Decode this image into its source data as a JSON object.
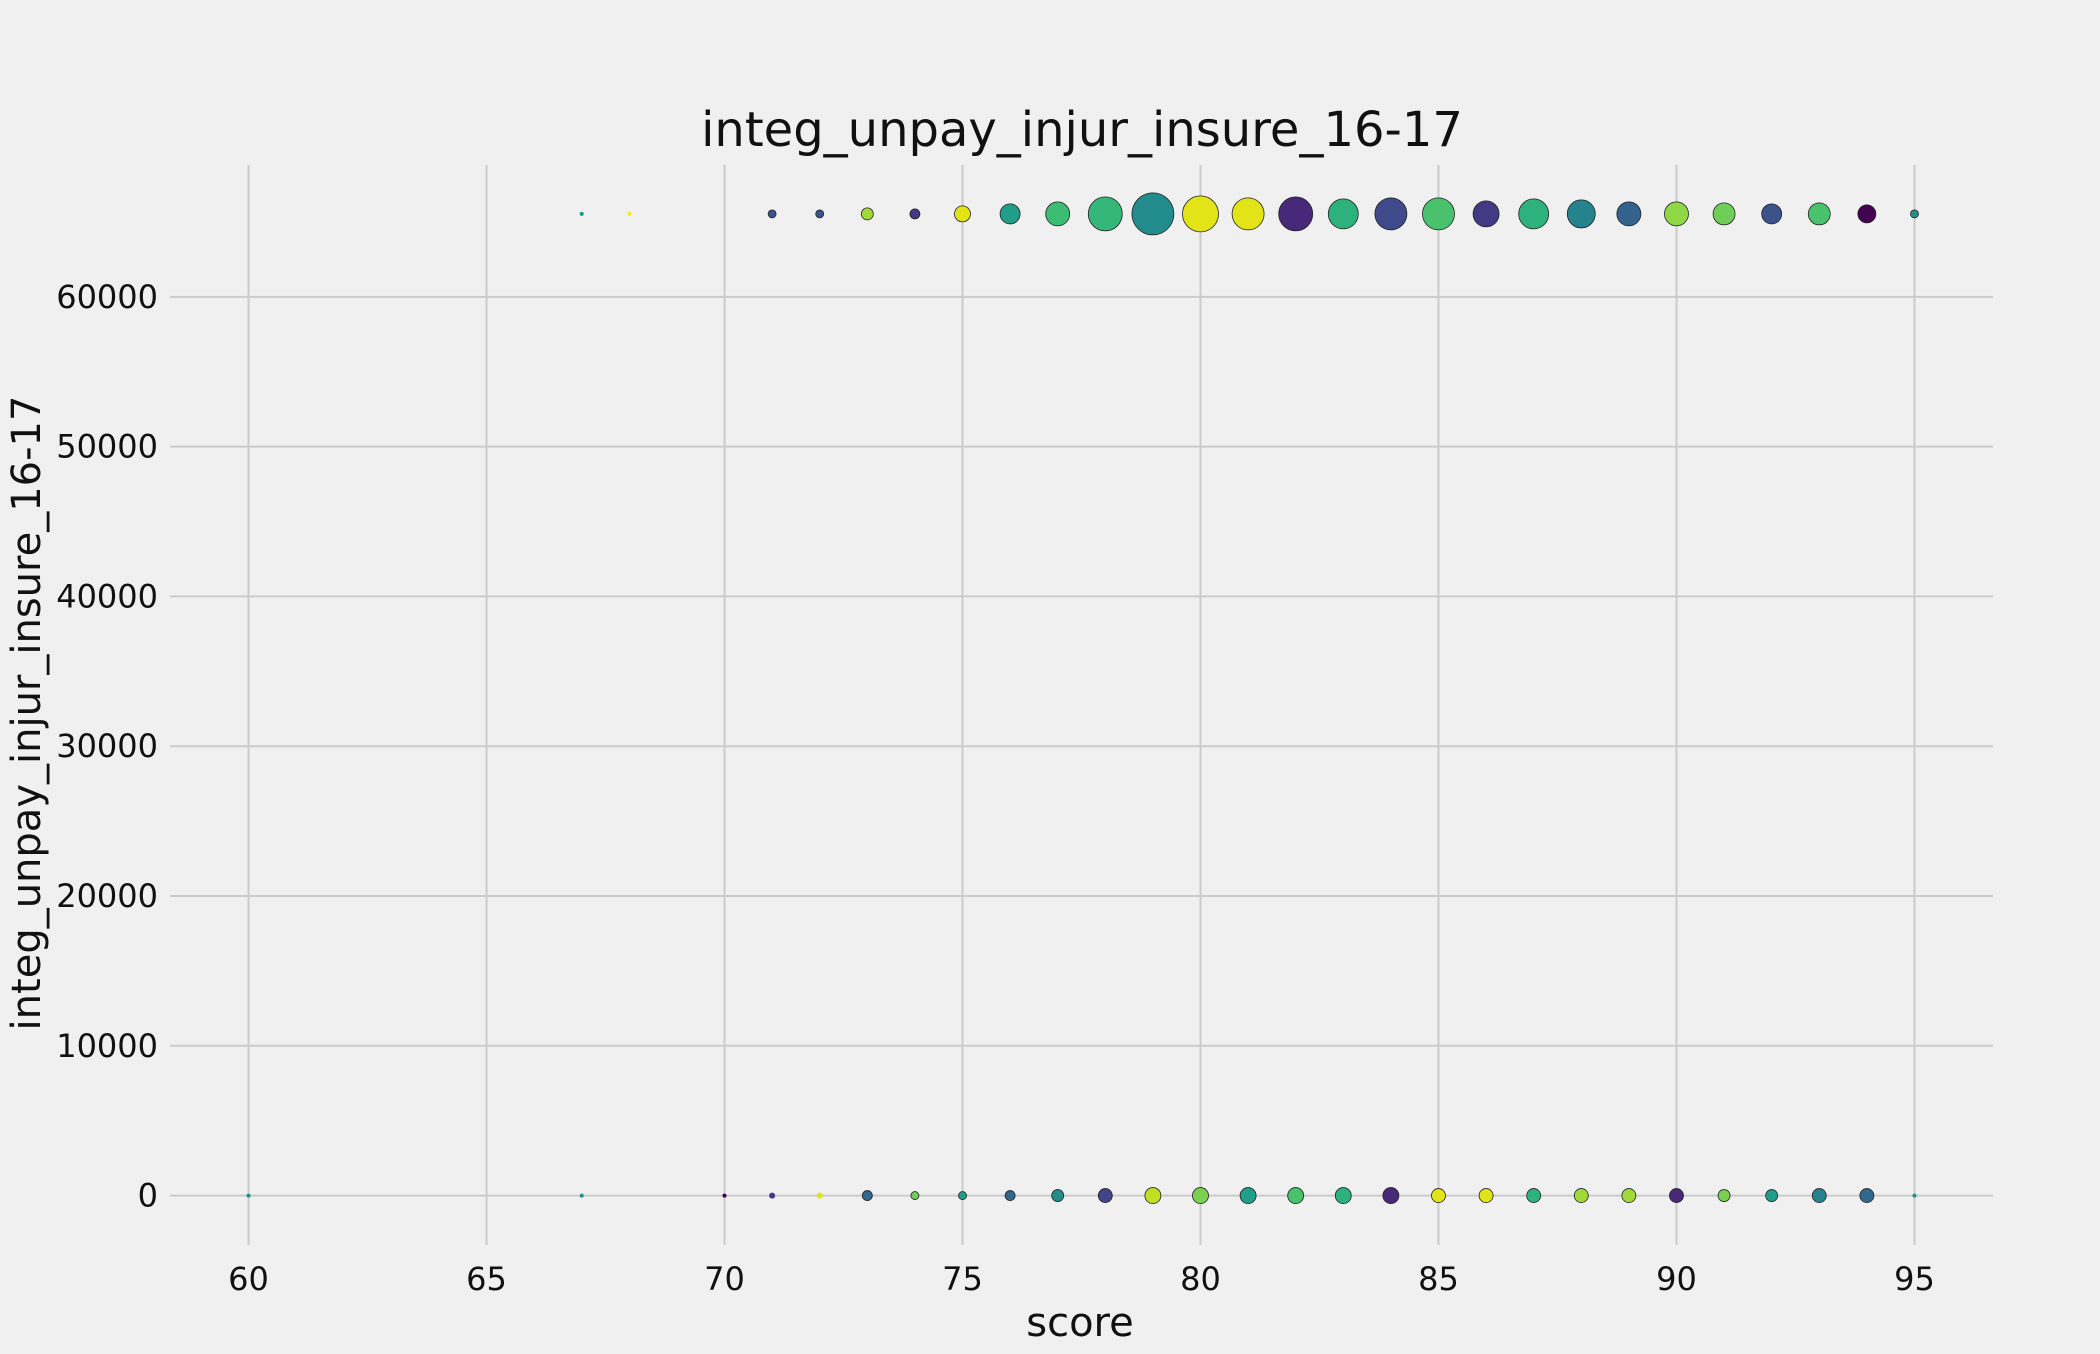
{
  "chart_data": {
    "type": "scatter",
    "title": "integ_unpay_injur_insure_16-17",
    "xlabel": "score",
    "ylabel": "integ_unpay_injur_insure_16-17",
    "xlim": [
      58.35,
      96.65
    ],
    "ylim": [
      -3300,
      68800
    ],
    "xticks": [
      60,
      65,
      70,
      75,
      80,
      85,
      90,
      95
    ],
    "yticks": [
      0,
      10000,
      20000,
      30000,
      40000,
      50000,
      60000
    ],
    "grid": true,
    "background": "#f0f0f0",
    "gridColor": "#cbcbcb",
    "series": [
      {
        "points": [
          {
            "x": 67,
            "y": 65535,
            "size": 2,
            "color": "#21918c"
          },
          {
            "x": 68,
            "y": 65535,
            "size": 2,
            "color": "#fde725"
          },
          {
            "x": 71,
            "y": 65535,
            "size": 4,
            "color": "#3b528b"
          },
          {
            "x": 72,
            "y": 65535,
            "size": 4,
            "color": "#3b528b"
          },
          {
            "x": 73,
            "y": 65535,
            "size": 6,
            "color": "#a0da39"
          },
          {
            "x": 74,
            "y": 65535,
            "size": 5,
            "color": "#443983"
          },
          {
            "x": 75,
            "y": 65535,
            "size": 8,
            "color": "#e2e418"
          },
          {
            "x": 76,
            "y": 65535,
            "size": 10,
            "color": "#1f9e89"
          },
          {
            "x": 77,
            "y": 65535,
            "size": 12,
            "color": "#3dbc74"
          },
          {
            "x": 78,
            "y": 65535,
            "size": 17,
            "color": "#35b779"
          },
          {
            "x": 79,
            "y": 65535,
            "size": 21,
            "color": "#228c8d"
          },
          {
            "x": 80,
            "y": 65535,
            "size": 18,
            "color": "#e2e418"
          },
          {
            "x": 81,
            "y": 65535,
            "size": 16,
            "color": "#e2e418"
          },
          {
            "x": 82,
            "y": 65535,
            "size": 17,
            "color": "#482878"
          },
          {
            "x": 83,
            "y": 65535,
            "size": 15,
            "color": "#2db27d"
          },
          {
            "x": 84,
            "y": 65535,
            "size": 16,
            "color": "#3e4a89"
          },
          {
            "x": 85,
            "y": 65535,
            "size": 16,
            "color": "#4ac16d"
          },
          {
            "x": 86,
            "y": 65535,
            "size": 13,
            "color": "#443983"
          },
          {
            "x": 87,
            "y": 65535,
            "size": 15,
            "color": "#2db27d"
          },
          {
            "x": 88,
            "y": 65535,
            "size": 14,
            "color": "#25838e"
          },
          {
            "x": 89,
            "y": 65535,
            "size": 12,
            "color": "#33638d"
          },
          {
            "x": 90,
            "y": 65535,
            "size": 12,
            "color": "#8fd744"
          },
          {
            "x": 91,
            "y": 65535,
            "size": 11,
            "color": "#6ece58"
          },
          {
            "x": 92,
            "y": 65535,
            "size": 10,
            "color": "#3b528b"
          },
          {
            "x": 93,
            "y": 65535,
            "size": 11,
            "color": "#4ac16d"
          },
          {
            "x": 94,
            "y": 65535,
            "size": 9,
            "color": "#440154"
          },
          {
            "x": 95,
            "y": 65535,
            "size": 4,
            "color": "#21918c"
          },
          {
            "x": 60,
            "y": 0,
            "size": 2,
            "color": "#21918c"
          },
          {
            "x": 67,
            "y": 0,
            "size": 2,
            "color": "#21918c"
          },
          {
            "x": 70,
            "y": 0,
            "size": 2,
            "color": "#440154"
          },
          {
            "x": 71,
            "y": 0,
            "size": 3,
            "color": "#443983"
          },
          {
            "x": 72,
            "y": 0,
            "size": 3,
            "color": "#e2e418"
          },
          {
            "x": 73,
            "y": 0,
            "size": 5,
            "color": "#31688e"
          },
          {
            "x": 74,
            "y": 0,
            "size": 4,
            "color": "#6ece58"
          },
          {
            "x": 75,
            "y": 0,
            "size": 4,
            "color": "#1f9e89"
          },
          {
            "x": 76,
            "y": 0,
            "size": 5,
            "color": "#31688e"
          },
          {
            "x": 77,
            "y": 0,
            "size": 6,
            "color": "#228c8d"
          },
          {
            "x": 78,
            "y": 0,
            "size": 7,
            "color": "#414487"
          },
          {
            "x": 79,
            "y": 0,
            "size": 8,
            "color": "#c2df23"
          },
          {
            "x": 80,
            "y": 0,
            "size": 8,
            "color": "#7ad151"
          },
          {
            "x": 81,
            "y": 0,
            "size": 8,
            "color": "#1f9e89"
          },
          {
            "x": 82,
            "y": 0,
            "size": 8,
            "color": "#4ac16d"
          },
          {
            "x": 83,
            "y": 0,
            "size": 8,
            "color": "#2db27d"
          },
          {
            "x": 84,
            "y": 0,
            "size": 8,
            "color": "#482878"
          },
          {
            "x": 85,
            "y": 0,
            "size": 7,
            "color": "#e2e418"
          },
          {
            "x": 86,
            "y": 0,
            "size": 7,
            "color": "#e2e418"
          },
          {
            "x": 87,
            "y": 0,
            "size": 7,
            "color": "#2db27d"
          },
          {
            "x": 88,
            "y": 0,
            "size": 7,
            "color": "#a0da39"
          },
          {
            "x": 89,
            "y": 0,
            "size": 7,
            "color": "#a0da39"
          },
          {
            "x": 90,
            "y": 0,
            "size": 7,
            "color": "#482878"
          },
          {
            "x": 91,
            "y": 0,
            "size": 6,
            "color": "#7ad151"
          },
          {
            "x": 92,
            "y": 0,
            "size": 6,
            "color": "#1f9e89"
          },
          {
            "x": 93,
            "y": 0,
            "size": 7,
            "color": "#26828e"
          },
          {
            "x": 94,
            "y": 0,
            "size": 7,
            "color": "#31688e"
          },
          {
            "x": 95,
            "y": 0,
            "size": 2,
            "color": "#21918c"
          }
        ]
      }
    ]
  }
}
